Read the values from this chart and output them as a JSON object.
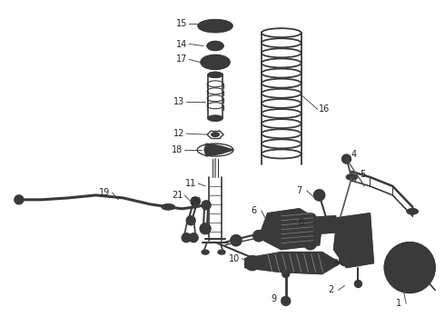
{
  "bg_color": "#ffffff",
  "line_color": "#3a3a3a",
  "label_color": "#222222",
  "fig_width": 4.9,
  "fig_height": 3.6,
  "dpi": 100,
  "label_fontsize": 7.0,
  "lw": 1.0
}
